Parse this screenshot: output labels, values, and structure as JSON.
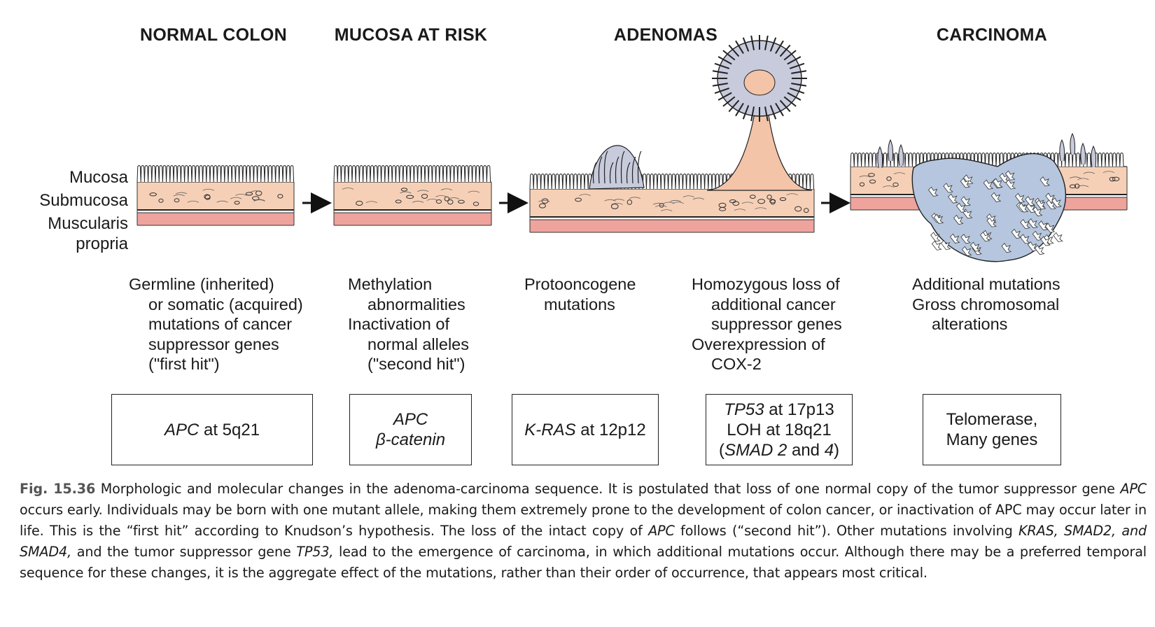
{
  "stages": [
    {
      "title": "NORMAL COLON"
    },
    {
      "title": "MUCOSA AT RISK"
    },
    {
      "title": "ADENOMAS"
    },
    {
      "title": "CARCINOMA"
    }
  ],
  "layer_labels": {
    "mucosa": "Mucosa",
    "submucosa": "Submucosa",
    "muscularis_1": "Muscularis",
    "muscularis_2": "propria"
  },
  "descriptions": [
    {
      "lines": [
        "Germline (inherited)",
        "or somatic (acquired)",
        "mutations of cancer",
        "suppressor genes",
        "(\"first hit\")"
      ]
    },
    {
      "lines": [
        "Methylation",
        "abnormalities",
        "Inactivation of",
        "normal alleles",
        "(\"second hit\")"
      ]
    },
    {
      "lines": [
        "Protooncogene",
        "mutations"
      ]
    },
    {
      "lines": [
        "Homozygous loss of",
        "additional cancer",
        "suppressor genes",
        "Overexpression of",
        "COX-2"
      ]
    },
    {
      "lines": [
        "Additional mutations",
        "Gross chromosomal",
        "alterations"
      ]
    }
  ],
  "gene_boxes": [
    {
      "l1_gene": "APC",
      "l1_rest": " at 5q21"
    },
    {
      "l1": "APC",
      "l2": "β-catenin"
    },
    {
      "l1_gene": "K-RAS",
      "l1_rest": " at 12p12"
    },
    {
      "l1_gene": "TP53",
      "l1_rest": " at 17p13",
      "l2": "LOH at 18q21",
      "l3_a": "(",
      "l3_b": "SMAD 2",
      "l3_c": " and ",
      "l3_d": "4",
      "l3_e": ")"
    },
    {
      "l1": "Telomerase,",
      "l2": "Many genes"
    }
  ],
  "caption": {
    "fig": "Fig. 15.36",
    "p1": " Morphologic and molecular changes in the adenoma-carcinoma sequence. It is postulated that loss of one normal copy of the tumor suppressor gene ",
    "i1": "APC",
    "p2": " occurs early. Individuals may be born with one mutant allele, making them extremely prone to the development of colon cancer, or inactivation of APC may occur later in life. This is the “first hit” according to Knudson’s hypothesis. The loss of the intact copy of ",
    "i2": "APC",
    "p3": " follows (“second hit”). Other mutations involving ",
    "i3": "KRAS, SMAD2, and SMAD4,",
    "p4": " and the tumor suppressor gene ",
    "i4": "TP53,",
    "p5": " lead to the emergence of carcinoma, in which additional mutations occur. Although there may be a preferred temporal sequence for these changes, it is the aggregate effect of the mutations, rather than their order of occurrence, that appears most critical."
  },
  "colors": {
    "submucosa": "#f6d0b6",
    "muscularis": "#eea39c",
    "adenoma": "#c7cbdc",
    "carcinoma": "#b5c6de",
    "stalk": "#f4c4a8"
  }
}
